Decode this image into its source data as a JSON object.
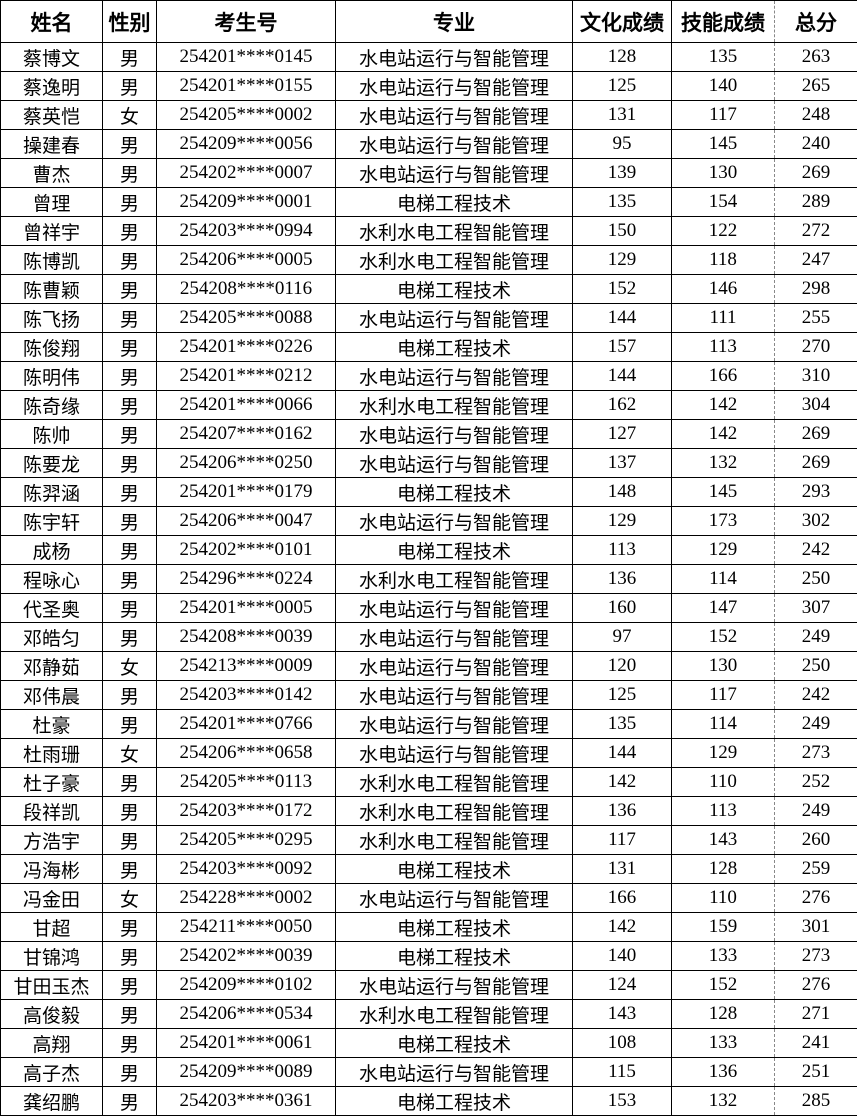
{
  "table": {
    "headers": [
      "姓名",
      "性别",
      "考生号",
      "专业",
      "文化成绩",
      "技能成绩",
      "总分"
    ],
    "rows": [
      [
        "蔡博文",
        "男",
        "254201****0145",
        "水电站运行与智能管理",
        "128",
        "135",
        "263"
      ],
      [
        "蔡逸明",
        "男",
        "254201****0155",
        "水电站运行与智能管理",
        "125",
        "140",
        "265"
      ],
      [
        "蔡英恺",
        "女",
        "254205****0002",
        "水电站运行与智能管理",
        "131",
        "117",
        "248"
      ],
      [
        "操建春",
        "男",
        "254209****0056",
        "水电站运行与智能管理",
        "95",
        "145",
        "240"
      ],
      [
        "曹杰",
        "男",
        "254202****0007",
        "水电站运行与智能管理",
        "139",
        "130",
        "269"
      ],
      [
        "曾理",
        "男",
        "254209****0001",
        "电梯工程技术",
        "135",
        "154",
        "289"
      ],
      [
        "曾祥宇",
        "男",
        "254203****0994",
        "水利水电工程智能管理",
        "150",
        "122",
        "272"
      ],
      [
        "陈博凯",
        "男",
        "254206****0005",
        "水利水电工程智能管理",
        "129",
        "118",
        "247"
      ],
      [
        "陈曹颖",
        "男",
        "254208****0116",
        "电梯工程技术",
        "152",
        "146",
        "298"
      ],
      [
        "陈飞扬",
        "男",
        "254205****0088",
        "水电站运行与智能管理",
        "144",
        "111",
        "255"
      ],
      [
        "陈俊翔",
        "男",
        "254201****0226",
        "电梯工程技术",
        "157",
        "113",
        "270"
      ],
      [
        "陈明伟",
        "男",
        "254201****0212",
        "水电站运行与智能管理",
        "144",
        "166",
        "310"
      ],
      [
        "陈奇缘",
        "男",
        "254201****0066",
        "水利水电工程智能管理",
        "162",
        "142",
        "304"
      ],
      [
        "陈帅",
        "男",
        "254207****0162",
        "水电站运行与智能管理",
        "127",
        "142",
        "269"
      ],
      [
        "陈要龙",
        "男",
        "254206****0250",
        "水电站运行与智能管理",
        "137",
        "132",
        "269"
      ],
      [
        "陈羿涵",
        "男",
        "254201****0179",
        "电梯工程技术",
        "148",
        "145",
        "293"
      ],
      [
        "陈宇轩",
        "男",
        "254206****0047",
        "水电站运行与智能管理",
        "129",
        "173",
        "302"
      ],
      [
        "成杨",
        "男",
        "254202****0101",
        "电梯工程技术",
        "113",
        "129",
        "242"
      ],
      [
        "程咏心",
        "男",
        "254296****0224",
        "水利水电工程智能管理",
        "136",
        "114",
        "250"
      ],
      [
        "代圣奥",
        "男",
        "254201****0005",
        "水电站运行与智能管理",
        "160",
        "147",
        "307"
      ],
      [
        "邓皓匀",
        "男",
        "254208****0039",
        "水电站运行与智能管理",
        "97",
        "152",
        "249"
      ],
      [
        "邓静茹",
        "女",
        "254213****0009",
        "水电站运行与智能管理",
        "120",
        "130",
        "250"
      ],
      [
        "邓伟晨",
        "男",
        "254203****0142",
        "水电站运行与智能管理",
        "125",
        "117",
        "242"
      ],
      [
        "杜豪",
        "男",
        "254201****0766",
        "水电站运行与智能管理",
        "135",
        "114",
        "249"
      ],
      [
        "杜雨珊",
        "女",
        "254206****0658",
        "水电站运行与智能管理",
        "144",
        "129",
        "273"
      ],
      [
        "杜子豪",
        "男",
        "254205****0113",
        "水利水电工程智能管理",
        "142",
        "110",
        "252"
      ],
      [
        "段祥凯",
        "男",
        "254203****0172",
        "水利水电工程智能管理",
        "136",
        "113",
        "249"
      ],
      [
        "方浩宇",
        "男",
        "254205****0295",
        "水利水电工程智能管理",
        "117",
        "143",
        "260"
      ],
      [
        "冯海彬",
        "男",
        "254203****0092",
        "电梯工程技术",
        "131",
        "128",
        "259"
      ],
      [
        "冯金田",
        "女",
        "254228****0002",
        "水电站运行与智能管理",
        "166",
        "110",
        "276"
      ],
      [
        "甘超",
        "男",
        "254211****0050",
        "电梯工程技术",
        "142",
        "159",
        "301"
      ],
      [
        "甘锦鸿",
        "男",
        "254202****0039",
        "电梯工程技术",
        "140",
        "133",
        "273"
      ],
      [
        "甘田玉杰",
        "男",
        "254209****0102",
        "水电站运行与智能管理",
        "124",
        "152",
        "276"
      ],
      [
        "高俊毅",
        "男",
        "254206****0534",
        "水利水电工程智能管理",
        "143",
        "128",
        "271"
      ],
      [
        "高翔",
        "男",
        "254201****0061",
        "电梯工程技术",
        "108",
        "133",
        "241"
      ],
      [
        "高子杰",
        "男",
        "254209****0089",
        "水电站运行与智能管理",
        "115",
        "136",
        "251"
      ],
      [
        "龚绍鹏",
        "男",
        "254203****0361",
        "电梯工程技术",
        "153",
        "132",
        "285"
      ]
    ]
  }
}
